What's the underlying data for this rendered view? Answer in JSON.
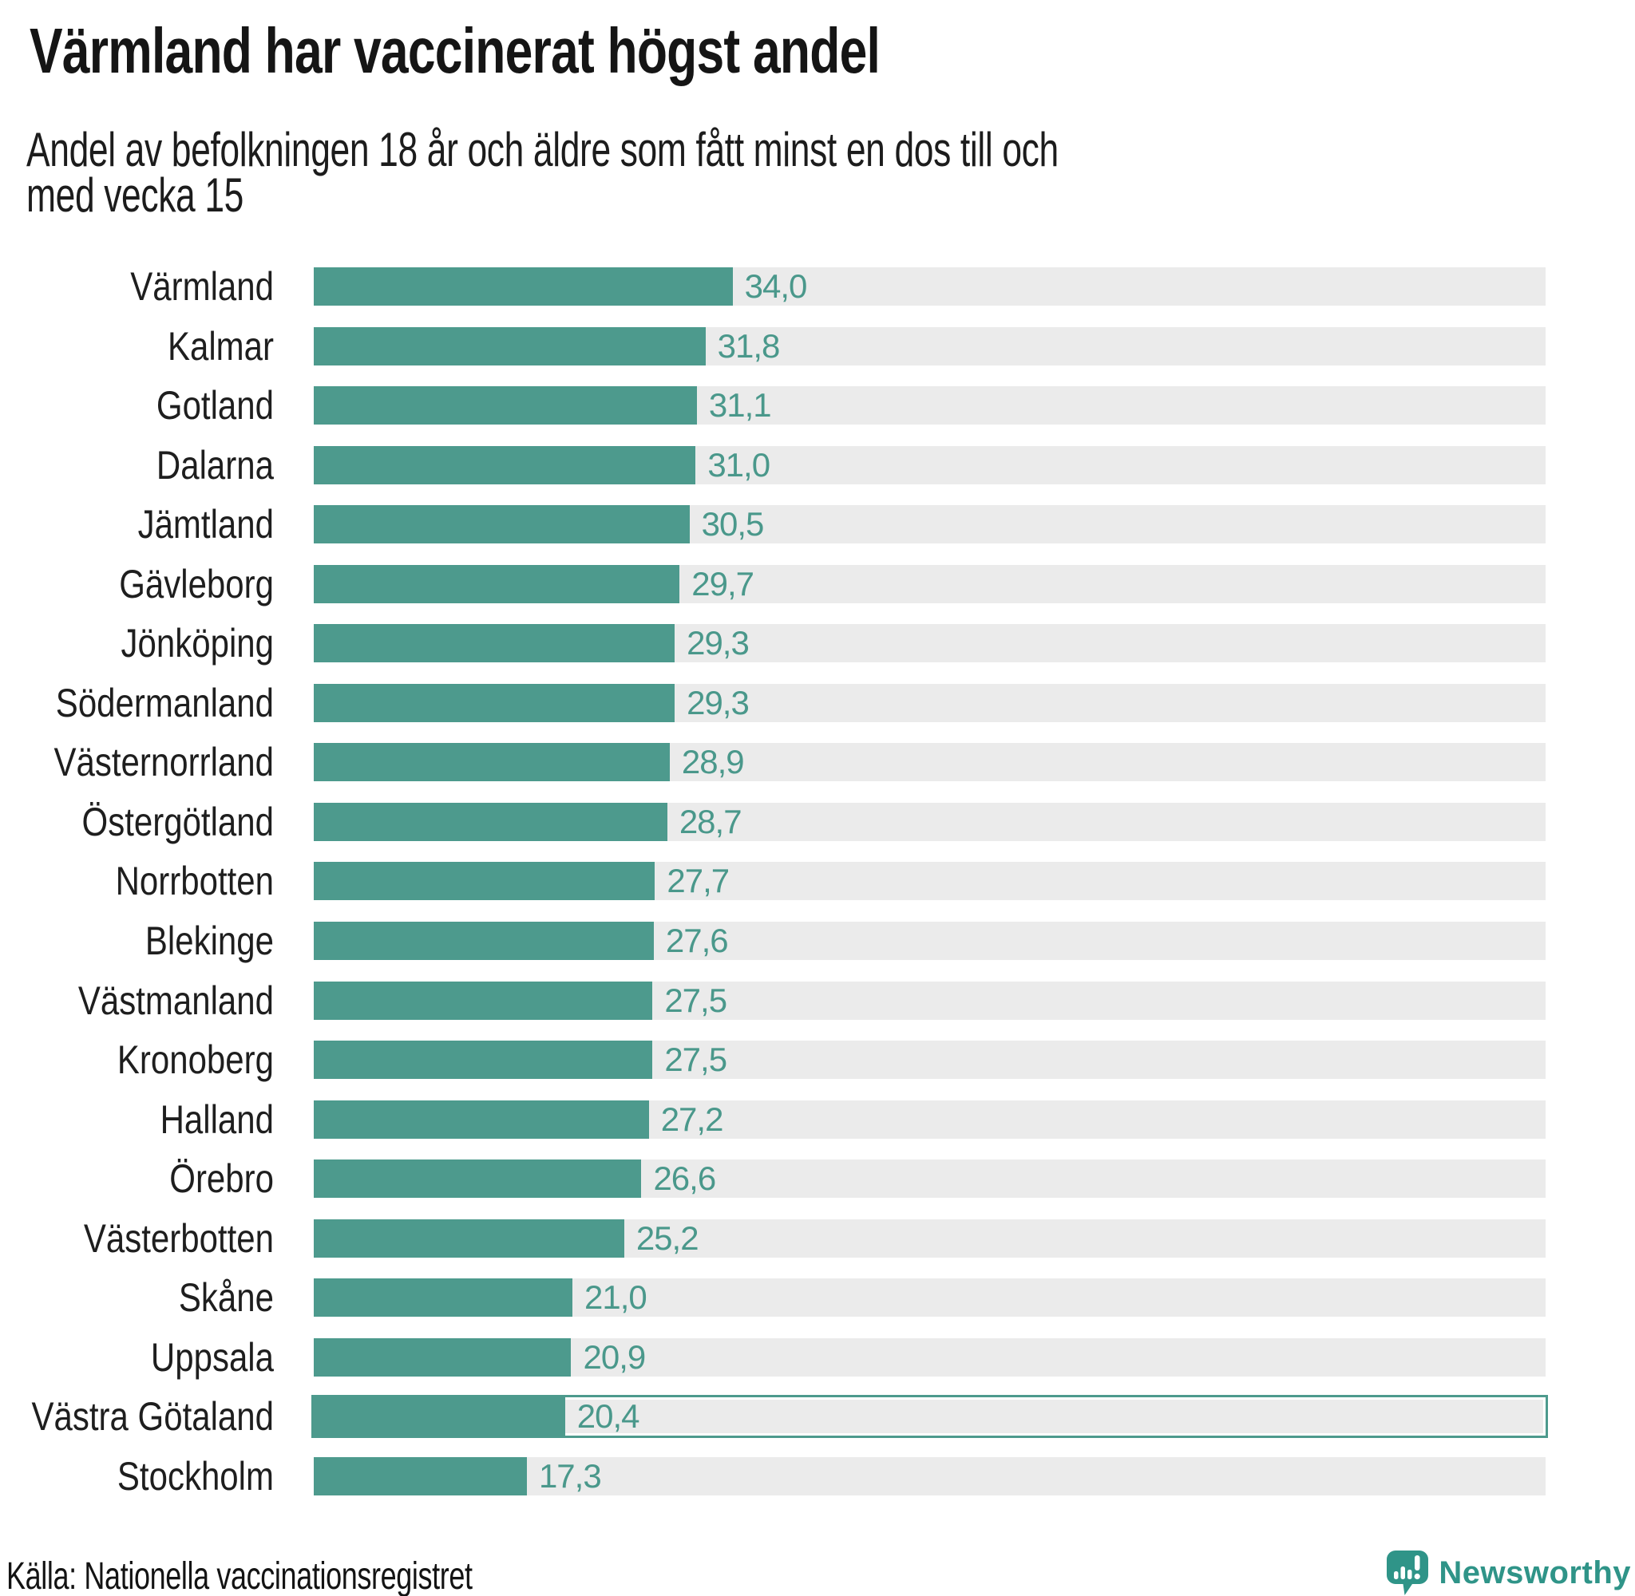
{
  "chart_data": {
    "type": "bar",
    "title": "Värmland har vaccinerat högst andel",
    "subtitle": "Andel av befolkningen 18 år och äldre som fått minst en dos till och med vecka 15",
    "categories": [
      "Värmland",
      "Kalmar",
      "Gotland",
      "Dalarna",
      "Jämtland",
      "Gävleborg",
      "Jönköping",
      "Södermanland",
      "Västernorrland",
      "Östergötland",
      "Norrbotten",
      "Blekinge",
      "Västmanland",
      "Kronoberg",
      "Halland",
      "Örebro",
      "Västerbotten",
      "Skåne",
      "Uppsala",
      "Västra Götaland",
      "Stockholm"
    ],
    "values": [
      34.0,
      31.8,
      31.1,
      31.0,
      30.5,
      29.7,
      29.3,
      29.3,
      28.9,
      28.7,
      27.7,
      27.6,
      27.5,
      27.5,
      27.2,
      26.6,
      25.2,
      21.0,
      20.9,
      20.4,
      17.3
    ],
    "value_labels": [
      "34,0",
      "31,8",
      "31,1",
      "31,0",
      "30,5",
      "29,7",
      "29,3",
      "29,3",
      "28,9",
      "28,7",
      "27,7",
      "27,6",
      "27,5",
      "27,5",
      "27,2",
      "26,6",
      "25,2",
      "21,0",
      "20,9",
      "20,4",
      "17,3"
    ],
    "highlight_category": "Västra Götaland",
    "xlim": [
      0,
      100
    ],
    "orientation": "horizontal",
    "bar_color": "#4d9a8d",
    "track_color": "#ebebeb",
    "value_label_color": "#4a988b",
    "source": "Källa: Nationella vaccinationsregistret"
  },
  "branding": {
    "logo_text": "Newsworthy",
    "logo_color": "#2f9488"
  }
}
